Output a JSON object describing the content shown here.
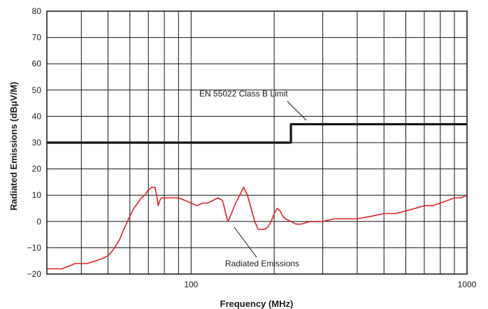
{
  "chart_data": {
    "type": "line",
    "xlabel": "Frequency (MHz)",
    "ylabel": "Radiated Emissions (dBμV/M)",
    "x_scale": "log",
    "xlim": [
      30,
      1000
    ],
    "ylim": [
      -20,
      80
    ],
    "x_tick_labels": [
      {
        "value": 100,
        "label": "100"
      },
      {
        "value": 1000,
        "label": "1000"
      }
    ],
    "y_ticks": [
      -20,
      -10,
      0,
      10,
      20,
      30,
      40,
      50,
      60,
      70,
      80
    ],
    "y_tick_labels": [
      "−20",
      "−10",
      "0",
      "10",
      "20",
      "30",
      "40",
      "50",
      "60",
      "70",
      "80"
    ],
    "grid": true,
    "annotations": [
      {
        "text": "EN 55022 Class B Limit",
        "target_series": "limit"
      },
      {
        "text": "Radiated Emissions",
        "target_series": "emissions"
      }
    ],
    "series": [
      {
        "id": "limit",
        "color": "#111111",
        "x": [
          30,
          230,
          230,
          1000
        ],
        "y": [
          30,
          30,
          37,
          37
        ]
      },
      {
        "id": "emissions",
        "color": "#e0202a",
        "x": [
          30,
          32,
          34,
          36,
          38,
          40,
          42,
          45,
          48,
          50,
          52,
          55,
          57,
          60,
          62,
          64,
          66,
          68,
          70,
          72,
          74,
          75,
          76,
          77,
          78,
          80,
          83,
          86,
          90,
          95,
          100,
          105,
          110,
          115,
          120,
          125,
          130,
          135,
          136,
          140,
          145,
          150,
          155,
          160,
          165,
          170,
          175,
          180,
          185,
          190,
          195,
          200,
          205,
          210,
          215,
          220,
          230,
          240,
          250,
          270,
          300,
          330,
          360,
          400,
          450,
          500,
          550,
          600,
          650,
          700,
          750,
          800,
          850,
          900,
          950,
          1000
        ],
        "y": [
          -18,
          -18,
          -18,
          -17,
          -16,
          -16,
          -16,
          -15,
          -14,
          -13,
          -11,
          -7,
          -3,
          2,
          5,
          7,
          9,
          10,
          12,
          13,
          13,
          10,
          6,
          8,
          9,
          9,
          9,
          9,
          9,
          8,
          7,
          6,
          7,
          7,
          8,
          9,
          8,
          1,
          0,
          3,
          7,
          10,
          13,
          10,
          5,
          0,
          -3,
          -3,
          -3,
          -2,
          0,
          3,
          5,
          4,
          2,
          1,
          0,
          -1,
          -1,
          0,
          0,
          1,
          1,
          1,
          2,
          3,
          3,
          4,
          5,
          6,
          6,
          7,
          8,
          9,
          9,
          10
        ]
      }
    ]
  }
}
